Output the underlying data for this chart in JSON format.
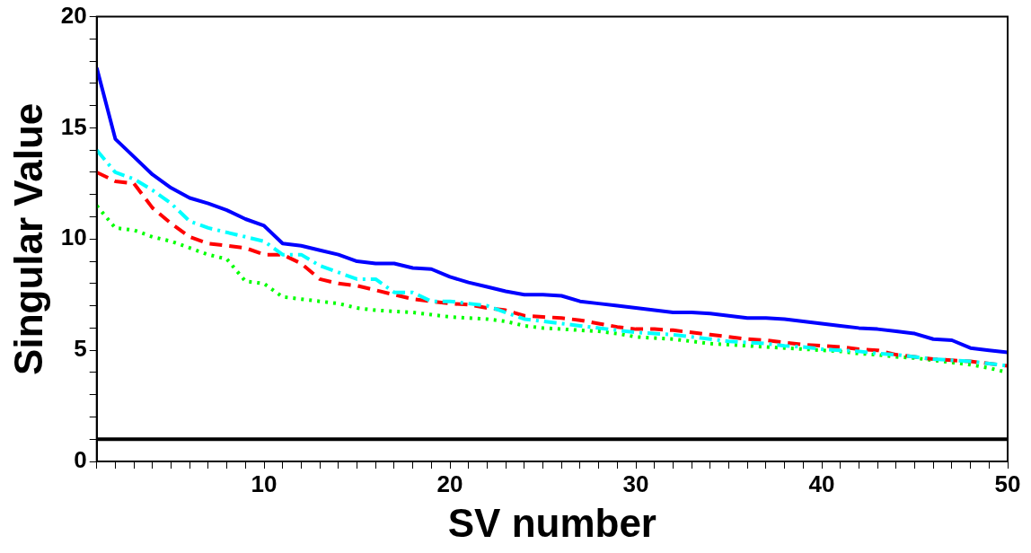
{
  "chart_data": {
    "type": "line",
    "xlabel": "SV number",
    "ylabel": "Singular Value",
    "x": [
      1,
      2,
      3,
      4,
      5,
      6,
      7,
      8,
      9,
      10,
      11,
      12,
      13,
      14,
      15,
      16,
      17,
      18,
      19,
      20,
      21,
      22,
      23,
      24,
      25,
      26,
      27,
      28,
      29,
      30,
      31,
      32,
      33,
      34,
      35,
      36,
      37,
      38,
      39,
      40,
      41,
      42,
      43,
      44,
      45,
      46,
      47,
      48,
      49,
      50
    ],
    "series": [
      {
        "color": "#0000ff",
        "line_style": "solid",
        "values": [
          17.7,
          14.5,
          13.7,
          12.9,
          12.3,
          11.85,
          11.6,
          11.3,
          10.9,
          10.6,
          9.8,
          9.7,
          9.5,
          9.3,
          9.0,
          8.9,
          8.9,
          8.7,
          8.65,
          8.3,
          8.05,
          7.85,
          7.65,
          7.5,
          7.5,
          7.45,
          7.2,
          7.1,
          7.0,
          6.9,
          6.8,
          6.7,
          6.7,
          6.65,
          6.55,
          6.45,
          6.45,
          6.4,
          6.3,
          6.2,
          6.1,
          6.0,
          5.95,
          5.85,
          5.75,
          5.5,
          5.45,
          5.1,
          5.0,
          4.9
        ]
      },
      {
        "color": "#00ffff",
        "line_style": "dashdot",
        "values": [
          14.0,
          13.0,
          12.7,
          12.2,
          11.6,
          10.8,
          10.5,
          10.3,
          10.1,
          9.9,
          9.3,
          9.3,
          8.8,
          8.5,
          8.2,
          8.2,
          7.6,
          7.6,
          7.2,
          7.2,
          7.1,
          7.0,
          6.7,
          6.4,
          6.3,
          6.2,
          6.1,
          6.0,
          5.9,
          5.8,
          5.75,
          5.7,
          5.6,
          5.5,
          5.4,
          5.35,
          5.3,
          5.2,
          5.15,
          5.05,
          5.0,
          4.95,
          4.85,
          4.8,
          4.7,
          4.6,
          4.55,
          4.5,
          4.4,
          4.3
        ]
      },
      {
        "color": "#ff0000",
        "line_style": "dashed",
        "values": [
          13.0,
          12.6,
          12.5,
          11.4,
          10.7,
          10.1,
          9.8,
          9.7,
          9.6,
          9.3,
          9.3,
          8.9,
          8.2,
          8.0,
          7.9,
          7.7,
          7.5,
          7.3,
          7.2,
          7.1,
          7.05,
          6.9,
          6.8,
          6.55,
          6.5,
          6.45,
          6.35,
          6.2,
          6.05,
          5.95,
          5.95,
          5.9,
          5.8,
          5.7,
          5.6,
          5.5,
          5.45,
          5.35,
          5.25,
          5.2,
          5.15,
          5.05,
          5.0,
          4.8,
          4.7,
          4.6,
          4.55,
          4.5,
          4.4,
          4.3
        ]
      },
      {
        "color": "#00ff00",
        "line_style": "dotted",
        "values": [
          11.5,
          10.5,
          10.4,
          10.1,
          9.9,
          9.6,
          9.3,
          9.1,
          8.1,
          8.0,
          7.4,
          7.3,
          7.2,
          7.1,
          6.9,
          6.8,
          6.75,
          6.7,
          6.6,
          6.5,
          6.45,
          6.4,
          6.3,
          6.1,
          6.0,
          5.95,
          5.9,
          5.85,
          5.75,
          5.6,
          5.55,
          5.5,
          5.4,
          5.3,
          5.25,
          5.2,
          5.15,
          5.1,
          5.05,
          5.0,
          4.95,
          4.85,
          4.8,
          4.7,
          4.65,
          4.55,
          4.45,
          4.35,
          4.2,
          4.0
        ]
      }
    ],
    "xlim": [
      1,
      50
    ],
    "xticks": [
      {
        "value": 1,
        "label": null
      },
      {
        "value": 2,
        "label": null
      },
      {
        "value": 3,
        "label": null
      },
      {
        "value": 4,
        "label": null
      },
      {
        "value": 5,
        "label": null
      },
      {
        "value": 6,
        "label": null
      },
      {
        "value": 7,
        "label": null
      },
      {
        "value": 8,
        "label": null
      },
      {
        "value": 9,
        "label": null
      },
      10,
      {
        "value": 11,
        "label": null
      },
      {
        "value": 12,
        "label": null
      },
      {
        "value": 13,
        "label": null
      },
      {
        "value": 14,
        "label": null
      },
      {
        "value": 15,
        "label": null
      },
      {
        "value": 16,
        "label": null
      },
      {
        "value": 17,
        "label": null
      },
      {
        "value": 18,
        "label": null
      },
      {
        "value": 19,
        "label": null
      },
      20,
      {
        "value": 21,
        "label": null
      },
      {
        "value": 22,
        "label": null
      },
      {
        "value": 23,
        "label": null
      },
      {
        "value": 24,
        "label": null
      },
      {
        "value": 25,
        "label": null
      },
      {
        "value": 26,
        "label": null
      },
      {
        "value": 27,
        "label": null
      },
      {
        "value": 28,
        "label": null
      },
      {
        "value": 29,
        "label": null
      },
      30,
      {
        "value": 31,
        "label": null
      },
      {
        "value": 32,
        "label": null
      },
      {
        "value": 33,
        "label": null
      },
      {
        "value": 34,
        "label": null
      },
      {
        "value": 35,
        "label": null
      },
      {
        "value": 36,
        "label": null
      },
      {
        "value": 37,
        "label": null
      },
      {
        "value": 38,
        "label": null
      },
      {
        "value": 39,
        "label": null
      },
      40,
      {
        "value": 41,
        "label": null
      },
      {
        "value": 42,
        "label": null
      },
      {
        "value": 43,
        "label": null
      },
      {
        "value": 44,
        "label": null
      },
      {
        "value": 45,
        "label": null
      },
      {
        "value": 46,
        "label": null
      },
      {
        "value": 47,
        "label": null
      },
      {
        "value": 48,
        "label": null
      },
      {
        "value": 49,
        "label": null
      },
      50
    ],
    "ylim": [
      0,
      20
    ],
    "yticks": [
      0,
      {
        "value": 1,
        "label": null
      },
      {
        "value": 2,
        "label": null
      },
      {
        "value": 3,
        "label": null
      },
      {
        "value": 4,
        "label": null
      },
      5,
      {
        "value": 6,
        "label": null
      },
      {
        "value": 7,
        "label": null
      },
      {
        "value": 8,
        "label": null
      },
      {
        "value": 9,
        "label": null
      },
      10,
      {
        "value": 11,
        "label": null
      },
      {
        "value": 12,
        "label": null
      },
      {
        "value": 13,
        "label": null
      },
      {
        "value": 14,
        "label": null
      },
      15,
      {
        "value": 16,
        "label": null
      },
      {
        "value": 17,
        "label": null
      },
      {
        "value": 18,
        "label": null
      },
      {
        "value": 19,
        "label": null
      },
      20
    ],
    "ref_lines": [
      {
        "axis": "y",
        "value": 1,
        "color": "#000000",
        "line_style": "solid"
      }
    ],
    "grid": false,
    "legend": false,
    "marker": "none"
  }
}
